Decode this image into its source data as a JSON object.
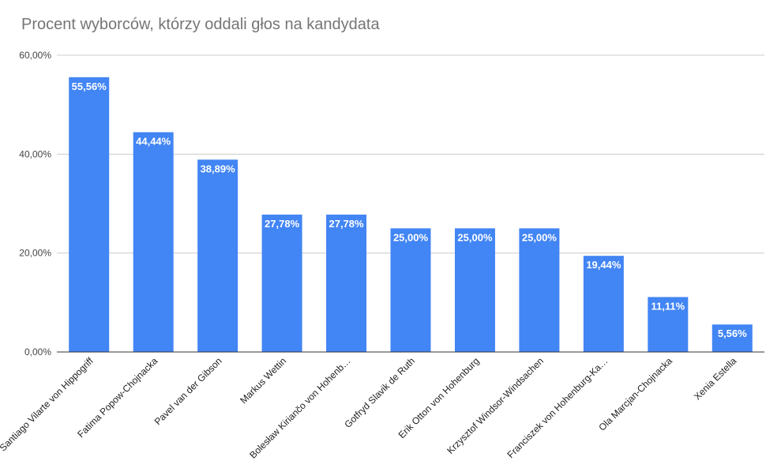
{
  "chart_data": {
    "type": "bar",
    "title": "Procent wyborców, którzy oddali głos na kandydata",
    "xlabel": "",
    "ylabel": "",
    "ylim": [
      0,
      60
    ],
    "y_ticks": [
      0,
      20,
      40,
      60
    ],
    "y_tick_labels": [
      "0,00%",
      "20,00%",
      "40,00%",
      "60,00%"
    ],
    "grid": true,
    "bar_color": "#4285f4",
    "categories": [
      "Santiago Vilarte von Hippogriff",
      "Fatima Popow-Chojnacka",
      "Pavel van der Gibson",
      "Markus Wettin",
      "Bolesław Kiriančo von Hohenb…",
      "Gotfryd Slavik de Ruth",
      "Erik Otton von Hohenburg",
      "Krzysztof Windsor-Windsachen",
      "Franciszek von Hohenburg-Ka…",
      "Ola Marcjan-Chojnacka",
      "Xenia Estella"
    ],
    "values": [
      55.56,
      44.44,
      38.89,
      27.78,
      27.78,
      25.0,
      25.0,
      25.0,
      19.44,
      11.11,
      5.56
    ],
    "data_labels": [
      "55,56%",
      "44,44%",
      "38,89%",
      "27,78%",
      "27,78%",
      "25,00%",
      "25,00%",
      "25,00%",
      "19,44%",
      "11,11%",
      "5,56%"
    ]
  }
}
